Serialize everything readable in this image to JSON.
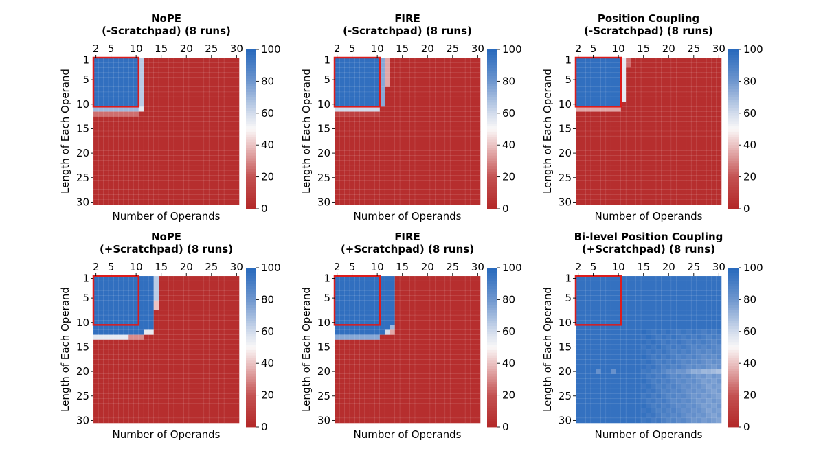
{
  "chart_data": [
    {
      "type": "heatmap",
      "title_line1": "NoPE",
      "title_line2": "(-Scratchpad) (8 runs)",
      "xlabel": "Number of Operands",
      "ylabel": "Length of Each Operand",
      "x_range": [
        2,
        30
      ],
      "y_range": [
        1,
        30
      ],
      "x_ticks": [
        2,
        5,
        10,
        15,
        20,
        25,
        30
      ],
      "y_ticks": [
        1,
        5,
        10,
        15,
        20,
        25,
        30
      ],
      "colorbar_ticks": [
        0,
        20,
        40,
        60,
        80,
        100
      ],
      "vmin": 0,
      "vmax": 100,
      "train_box": {
        "operands": [
          2,
          10
        ],
        "length": [
          1,
          10
        ]
      },
      "accuracy_model": {
        "base": "fail",
        "high_len_max": 10,
        "high_ops_max": 10,
        "edge": [
          {
            "len": [
              11,
              11
            ],
            "ops": [
              2,
              10
            ],
            "value": 70
          },
          {
            "len": [
              12,
              12
            ],
            "ops": [
              2,
              10
            ],
            "value": 25
          },
          {
            "len": [
              1,
              10
            ],
            "ops": [
              11,
              11
            ],
            "value": 65
          },
          {
            "len": [
              11,
              11
            ],
            "ops": [
              11,
              11
            ],
            "value": 55
          }
        ]
      }
    },
    {
      "type": "heatmap",
      "title_line1": "FIRE",
      "title_line2": "(-Scratchpad) (8 runs)",
      "xlabel": "Number of Operands",
      "ylabel": "Length of Each Operand",
      "x_range": [
        2,
        30
      ],
      "y_range": [
        1,
        30
      ],
      "x_ticks": [
        2,
        5,
        10,
        15,
        20,
        25,
        30
      ],
      "y_ticks": [
        1,
        5,
        10,
        15,
        20,
        25,
        30
      ],
      "colorbar_ticks": [
        0,
        20,
        40,
        60,
        80,
        100
      ],
      "vmin": 0,
      "vmax": 100,
      "train_box": {
        "operands": [
          2,
          10
        ],
        "length": [
          1,
          10
        ]
      },
      "accuracy_model": {
        "base": "fail",
        "high_len_max": 10,
        "high_ops_max": 10,
        "edge": [
          {
            "len": [
              11,
              11
            ],
            "ops": [
              2,
              10
            ],
            "value": 60
          },
          {
            "len": [
              1,
              10
            ],
            "ops": [
              11,
              11
            ],
            "value": 75
          },
          {
            "len": [
              1,
              6
            ],
            "ops": [
              12,
              12
            ],
            "value": 35
          },
          {
            "len": [
              12,
              12
            ],
            "ops": [
              2,
              10
            ],
            "value": 12
          }
        ]
      }
    },
    {
      "type": "heatmap",
      "title_line1": "Position Coupling",
      "title_line2": "(-Scratchpad) (8 runs)",
      "xlabel": "Number of Operands",
      "ylabel": "Length of Each Operand",
      "x_range": [
        2,
        30
      ],
      "y_range": [
        1,
        30
      ],
      "x_ticks": [
        2,
        5,
        10,
        15,
        20,
        25,
        30
      ],
      "y_ticks": [
        1,
        5,
        10,
        15,
        20,
        25,
        30
      ],
      "colorbar_ticks": [
        0,
        20,
        40,
        60,
        80,
        100
      ],
      "vmin": 0,
      "vmax": 100,
      "train_box": {
        "operands": [
          2,
          10
        ],
        "length": [
          1,
          10
        ]
      },
      "accuracy_model": {
        "base": "fail",
        "high_len_max": 10,
        "high_ops_max": 10,
        "edge": [
          {
            "len": [
              11,
              11
            ],
            "ops": [
              2,
              10
            ],
            "value": 35
          },
          {
            "len": [
              1,
              9
            ],
            "ops": [
              11,
              11
            ],
            "value": 55
          },
          {
            "len": [
              1,
              2
            ],
            "ops": [
              12,
              12
            ],
            "value": 25
          }
        ]
      }
    },
    {
      "type": "heatmap",
      "title_line1": "NoPE",
      "title_line2": "(+Scratchpad) (8 runs)",
      "xlabel": "Number of Operands",
      "ylabel": "Length of Each Operand",
      "x_range": [
        2,
        30
      ],
      "y_range": [
        1,
        30
      ],
      "x_ticks": [
        2,
        5,
        10,
        15,
        20,
        25,
        30
      ],
      "y_ticks": [
        1,
        5,
        10,
        15,
        20,
        25,
        30
      ],
      "colorbar_ticks": [
        0,
        20,
        40,
        60,
        80,
        100
      ],
      "vmin": 0,
      "vmax": 100,
      "train_box": {
        "operands": [
          2,
          10
        ],
        "length": [
          1,
          10
        ]
      },
      "accuracy_model": {
        "base": "fail",
        "high_len_max": 12,
        "high_ops_max": 13,
        "edge": [
          {
            "len": [
              13,
              13
            ],
            "ops": [
              2,
              8
            ],
            "value": 55
          },
          {
            "len": [
              13,
              13
            ],
            "ops": [
              9,
              11
            ],
            "value": 30
          },
          {
            "len": [
              1,
              5
            ],
            "ops": [
              14,
              14
            ],
            "value": 65
          },
          {
            "len": [
              6,
              7
            ],
            "ops": [
              14,
              14
            ],
            "value": 40
          },
          {
            "len": [
              12,
              12
            ],
            "ops": [
              12,
              13
            ],
            "value": 55
          }
        ]
      }
    },
    {
      "type": "heatmap",
      "title_line1": "FIRE",
      "title_line2": "(+Scratchpad) (8 runs)",
      "xlabel": "Number of Operands",
      "ylabel": "Length of Each Operand",
      "x_range": [
        2,
        30
      ],
      "y_range": [
        1,
        30
      ],
      "x_ticks": [
        2,
        5,
        10,
        15,
        20,
        25,
        30
      ],
      "y_ticks": [
        1,
        5,
        10,
        15,
        20,
        25,
        30
      ],
      "colorbar_ticks": [
        0,
        20,
        40,
        60,
        80,
        100
      ],
      "vmin": 0,
      "vmax": 100,
      "train_box": {
        "operands": [
          2,
          10
        ],
        "length": [
          1,
          10
        ]
      },
      "accuracy_model": {
        "base": "fail",
        "high_len_max": 12,
        "high_ops_max": 13,
        "edge": [
          {
            "len": [
              13,
              13
            ],
            "ops": [
              2,
              10
            ],
            "value": 75
          },
          {
            "len": [
              12,
              12
            ],
            "ops": [
              12,
              12
            ],
            "value": 60
          },
          {
            "len": [
              12,
              12
            ],
            "ops": [
              13,
              13
            ],
            "value": 35
          },
          {
            "len": [
              11,
              11
            ],
            "ops": [
              13,
              13
            ],
            "value": 70
          }
        ]
      }
    },
    {
      "type": "heatmap",
      "title_line1": "Bi-level Position Coupling",
      "title_line2": "(+Scratchpad) (8 runs)",
      "xlabel": "Number of Operands",
      "ylabel": "Length of Each Operand",
      "x_range": [
        2,
        30
      ],
      "y_range": [
        1,
        30
      ],
      "x_ticks": [
        2,
        5,
        10,
        15,
        20,
        25,
        30
      ],
      "y_ticks": [
        1,
        5,
        10,
        15,
        20,
        25,
        30
      ],
      "colorbar_ticks": [
        0,
        20,
        40,
        60,
        80,
        100
      ],
      "vmin": 0,
      "vmax": 100,
      "train_box": {
        "operands": [
          2,
          10
        ],
        "length": [
          1,
          10
        ]
      },
      "accuracy_model": {
        "base": "success",
        "dip_start_len": 12,
        "dip_ops_start": 15,
        "dip_min": 78,
        "dip_peak_row": 20,
        "edge": []
      }
    }
  ]
}
